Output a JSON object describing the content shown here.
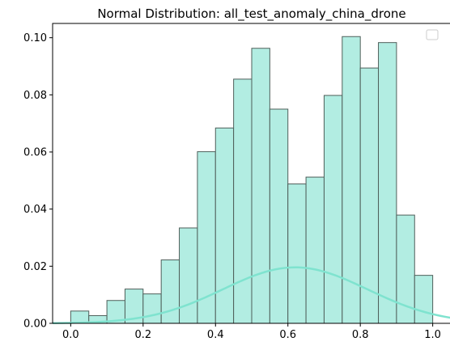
{
  "chart_data": {
    "type": "histogram",
    "title": "Normal Distribution: all_test_anomaly_china_drone",
    "xlabel": "",
    "ylabel": "",
    "xlim": [
      -0.05,
      1.05
    ],
    "ylim": [
      0,
      0.105
    ],
    "x_ticks": [
      "0.0",
      "0.2",
      "0.4",
      "0.6",
      "0.8",
      "1.0"
    ],
    "y_ticks": [
      "0.00",
      "0.02",
      "0.04",
      "0.06",
      "0.08",
      "0.10"
    ],
    "bin_edges": [
      0.0,
      0.05,
      0.1,
      0.15,
      0.2,
      0.25,
      0.3,
      0.35,
      0.4,
      0.45,
      0.5,
      0.55,
      0.6,
      0.65,
      0.7,
      0.75,
      0.8,
      0.85,
      0.9,
      0.95,
      1.0
    ],
    "bar_heights": [
      0.0043,
      0.0027,
      0.008,
      0.012,
      0.0103,
      0.0222,
      0.0334,
      0.0601,
      0.0684,
      0.0855,
      0.0963,
      0.075,
      0.0488,
      0.0512,
      0.0798,
      0.1004,
      0.0894,
      0.0983,
      0.0379,
      0.0168
    ],
    "fit_curve": {
      "type": "normal_pdf",
      "x_range": [
        -0.05,
        1.05
      ],
      "peak_x": 0.62,
      "peak_y": 0.0196,
      "sd": 0.2
    },
    "colors": {
      "bar_fill": "#b2ede2",
      "bar_edge": "#4f5f5a",
      "curve": "#7fe3cf"
    },
    "legend": {
      "position": "top-right",
      "entries": []
    },
    "grid": false
  }
}
